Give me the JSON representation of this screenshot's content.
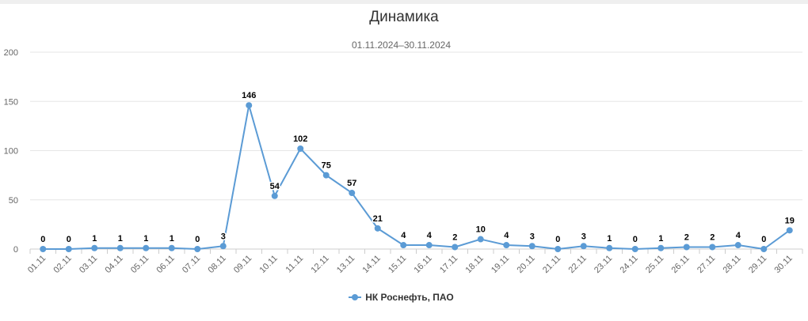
{
  "chart_data": {
    "type": "line",
    "title": "Динамика",
    "subtitle": "01.11.2024–30.11.2024",
    "categories": [
      "01.11",
      "02.11",
      "03.11",
      "04.11",
      "05.11",
      "06.11",
      "07.11",
      "08.11",
      "09.11",
      "10.11",
      "11.11",
      "12.11",
      "13.11",
      "14.11",
      "15.11",
      "16.11",
      "17.11",
      "18.11",
      "19.11",
      "20.11",
      "21.11",
      "22.11",
      "23.11",
      "24.11",
      "25.11",
      "26.11",
      "27.11",
      "28.11",
      "29.11",
      "30.11"
    ],
    "series": [
      {
        "name": "НК Роснефть, ПАО",
        "color": "#5b9bd5",
        "values": [
          0,
          0,
          1,
          1,
          1,
          1,
          0,
          3,
          146,
          54,
          102,
          75,
          57,
          21,
          4,
          4,
          2,
          10,
          4,
          3,
          0,
          3,
          1,
          0,
          1,
          2,
          2,
          4,
          0,
          19
        ]
      }
    ],
    "yticks": [
      0,
      50,
      100,
      150,
      200
    ],
    "ylim": [
      0,
      200
    ],
    "grid": true,
    "legend_position": "bottom-center",
    "data_labels": true
  }
}
